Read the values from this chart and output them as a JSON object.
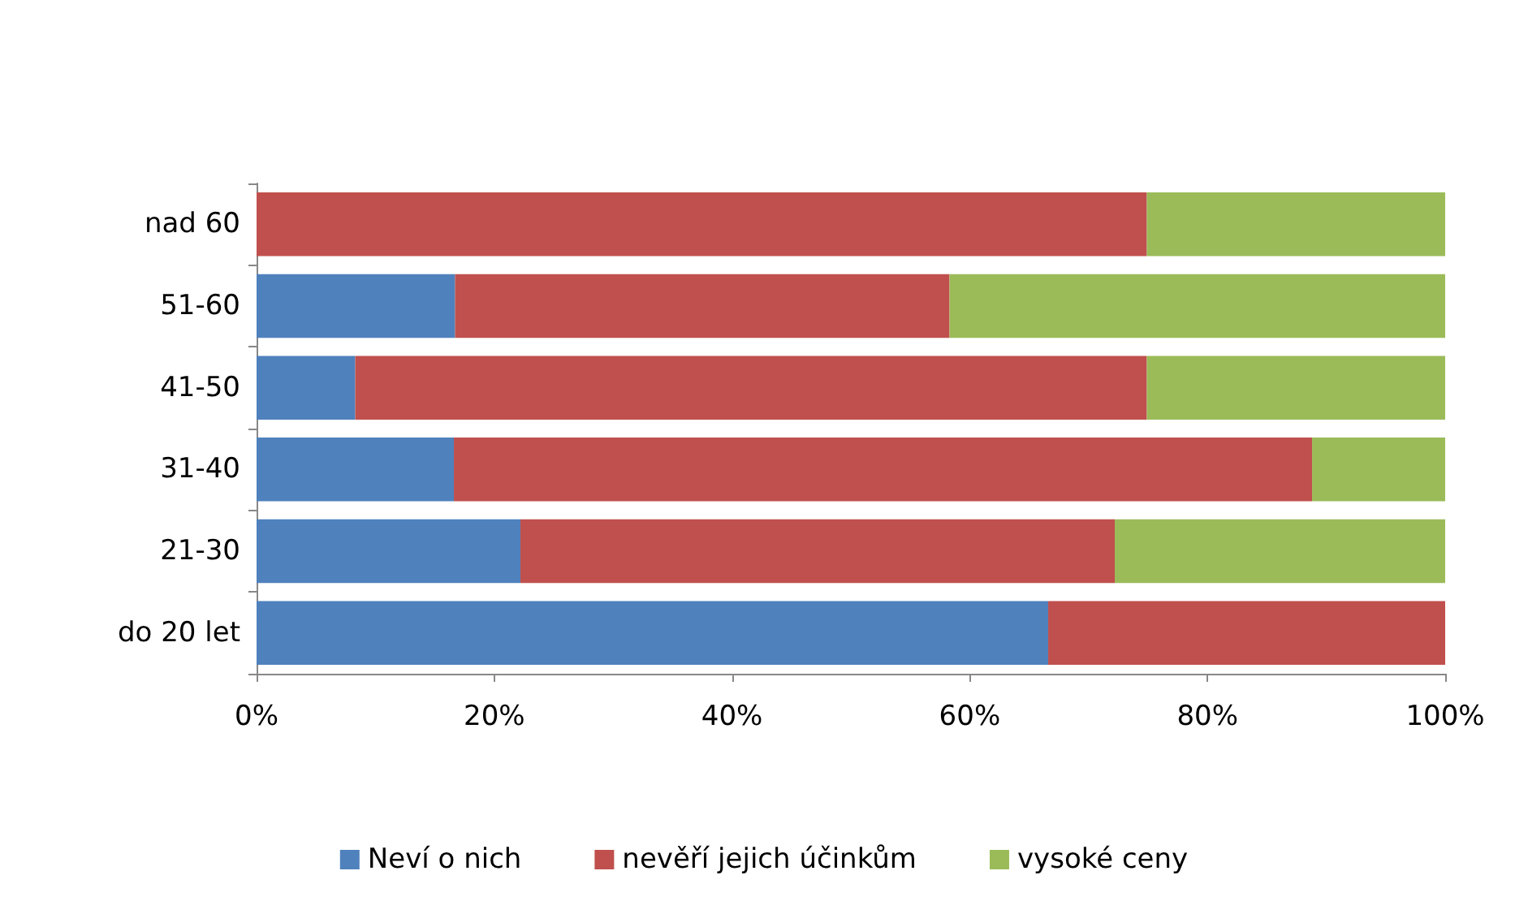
{
  "chart_data": {
    "type": "bar",
    "orientation": "horizontal",
    "stacked": true,
    "categories": [
      "nad 60",
      "51-60",
      "41-50",
      "31-40",
      "21-30",
      "do 20 let"
    ],
    "series": [
      {
        "name": "Neví o nich",
        "color": "#4f81bd",
        "values": [
          0,
          16.7,
          8.3,
          16.6,
          22.2,
          66.6
        ]
      },
      {
        "name": "nevěří jejich účinkům",
        "color": "#c0504d",
        "values": [
          74.9,
          41.6,
          66.6,
          72.2,
          50,
          33.4
        ]
      },
      {
        "name": "vysoké ceny",
        "color": "#9bbb59",
        "values": [
          25.1,
          41.7,
          25.1,
          11.2,
          27.8,
          0
        ]
      }
    ],
    "xlim": [
      0,
      100
    ],
    "xticks": [
      {
        "value": 0,
        "label": "0%"
      },
      {
        "value": 20,
        "label": "20%"
      },
      {
        "value": 40,
        "label": "40%"
      },
      {
        "value": 60,
        "label": "60%"
      },
      {
        "value": 80,
        "label": "80%"
      },
      {
        "value": 100,
        "label": "100%"
      }
    ],
    "grid": false,
    "legend": "bottom"
  }
}
